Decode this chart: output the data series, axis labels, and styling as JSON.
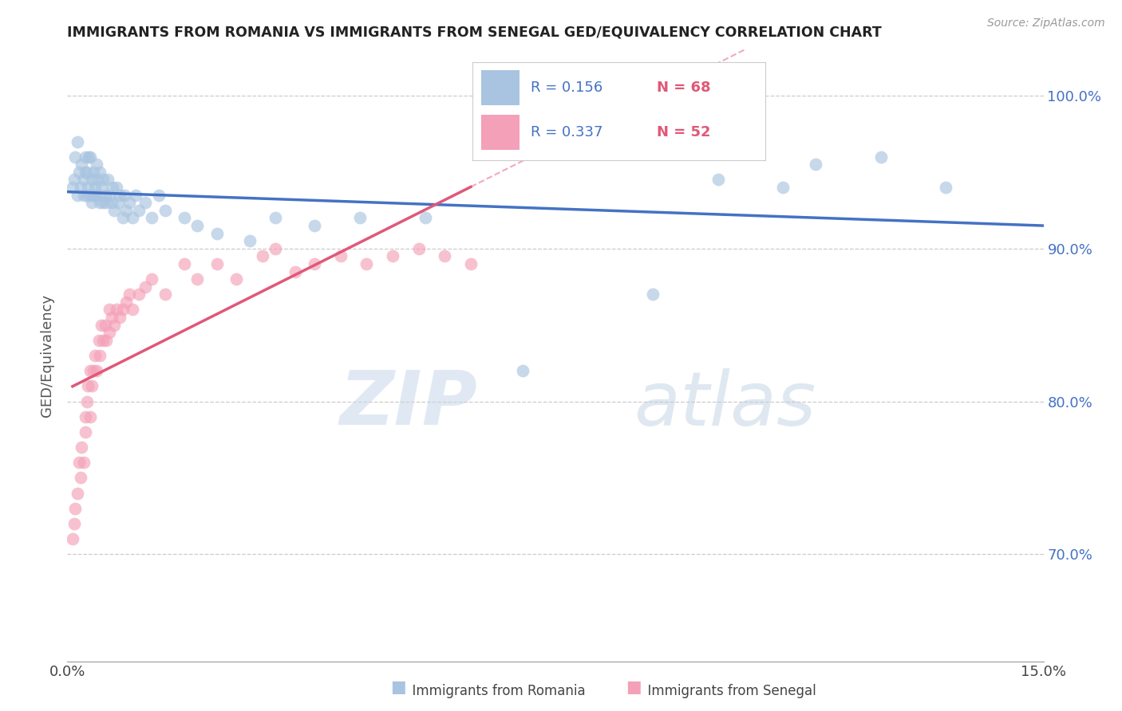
{
  "title": "IMMIGRANTS FROM ROMANIA VS IMMIGRANTS FROM SENEGAL GED/EQUIVALENCY CORRELATION CHART",
  "source": "Source: ZipAtlas.com",
  "ylabel": "GED/Equivalency",
  "xlim": [
    0.0,
    0.15
  ],
  "ylim": [
    0.63,
    1.03
  ],
  "y_ticks": [
    0.7,
    0.8,
    0.9,
    1.0
  ],
  "y_tick_labels": [
    "70.0%",
    "80.0%",
    "90.0%",
    "100.0%"
  ],
  "romania_color": "#a8c4e0",
  "senegal_color": "#f4a0b8",
  "romania_line_color": "#4472c4",
  "senegal_line_color": "#e05878",
  "legend_r_romania": "R = 0.156",
  "legend_n_romania": "N = 68",
  "legend_r_senegal": "R = 0.337",
  "legend_n_senegal": "N = 52",
  "legend_label_romania": "Immigrants from Romania",
  "legend_label_senegal": "Immigrants from Senegal",
  "watermark_zip": "ZIP",
  "watermark_atlas": "atlas",
  "romania_x": [
    0.0008,
    0.001,
    0.0012,
    0.0015,
    0.0015,
    0.0018,
    0.002,
    0.0022,
    0.0025,
    0.0025,
    0.0028,
    0.0028,
    0.003,
    0.003,
    0.0032,
    0.0033,
    0.0035,
    0.0035,
    0.0038,
    0.0038,
    0.004,
    0.004,
    0.0042,
    0.0043,
    0.0045,
    0.0045,
    0.0048,
    0.005,
    0.005,
    0.0052,
    0.0055,
    0.0055,
    0.0058,
    0.006,
    0.0062,
    0.0065,
    0.0068,
    0.007,
    0.0072,
    0.0075,
    0.0078,
    0.008,
    0.0085,
    0.0088,
    0.009,
    0.0095,
    0.01,
    0.0105,
    0.011,
    0.012,
    0.013,
    0.014,
    0.015,
    0.018,
    0.02,
    0.023,
    0.028,
    0.032,
    0.038,
    0.045,
    0.055,
    0.07,
    0.09,
    0.1,
    0.11,
    0.115,
    0.125,
    0.135
  ],
  "romania_y": [
    0.94,
    0.945,
    0.96,
    0.935,
    0.97,
    0.95,
    0.94,
    0.955,
    0.945,
    0.935,
    0.95,
    0.96,
    0.935,
    0.95,
    0.94,
    0.96,
    0.935,
    0.96,
    0.93,
    0.945,
    0.935,
    0.95,
    0.94,
    0.935,
    0.945,
    0.955,
    0.935,
    0.93,
    0.95,
    0.94,
    0.93,
    0.945,
    0.935,
    0.93,
    0.945,
    0.935,
    0.93,
    0.94,
    0.925,
    0.94,
    0.93,
    0.935,
    0.92,
    0.935,
    0.925,
    0.93,
    0.92,
    0.935,
    0.925,
    0.93,
    0.92,
    0.935,
    0.925,
    0.92,
    0.915,
    0.91,
    0.905,
    0.92,
    0.915,
    0.92,
    0.92,
    0.82,
    0.87,
    0.945,
    0.94,
    0.955,
    0.96,
    0.94
  ],
  "senegal_x": [
    0.0008,
    0.001,
    0.0012,
    0.0015,
    0.0018,
    0.002,
    0.0022,
    0.0025,
    0.0028,
    0.0028,
    0.003,
    0.0032,
    0.0035,
    0.0035,
    0.0038,
    0.004,
    0.0042,
    0.0045,
    0.0048,
    0.005,
    0.0052,
    0.0055,
    0.0058,
    0.006,
    0.0065,
    0.0065,
    0.0068,
    0.0072,
    0.0075,
    0.008,
    0.0085,
    0.009,
    0.0095,
    0.01,
    0.011,
    0.012,
    0.013,
    0.015,
    0.018,
    0.02,
    0.023,
    0.026,
    0.03,
    0.032,
    0.035,
    0.038,
    0.042,
    0.046,
    0.05,
    0.054,
    0.058,
    0.062
  ],
  "senegal_y": [
    0.71,
    0.72,
    0.73,
    0.74,
    0.76,
    0.75,
    0.77,
    0.76,
    0.78,
    0.79,
    0.8,
    0.81,
    0.79,
    0.82,
    0.81,
    0.82,
    0.83,
    0.82,
    0.84,
    0.83,
    0.85,
    0.84,
    0.85,
    0.84,
    0.845,
    0.86,
    0.855,
    0.85,
    0.86,
    0.855,
    0.86,
    0.865,
    0.87,
    0.86,
    0.87,
    0.875,
    0.88,
    0.87,
    0.89,
    0.88,
    0.89,
    0.88,
    0.895,
    0.9,
    0.885,
    0.89,
    0.895,
    0.89,
    0.895,
    0.9,
    0.895,
    0.89
  ]
}
